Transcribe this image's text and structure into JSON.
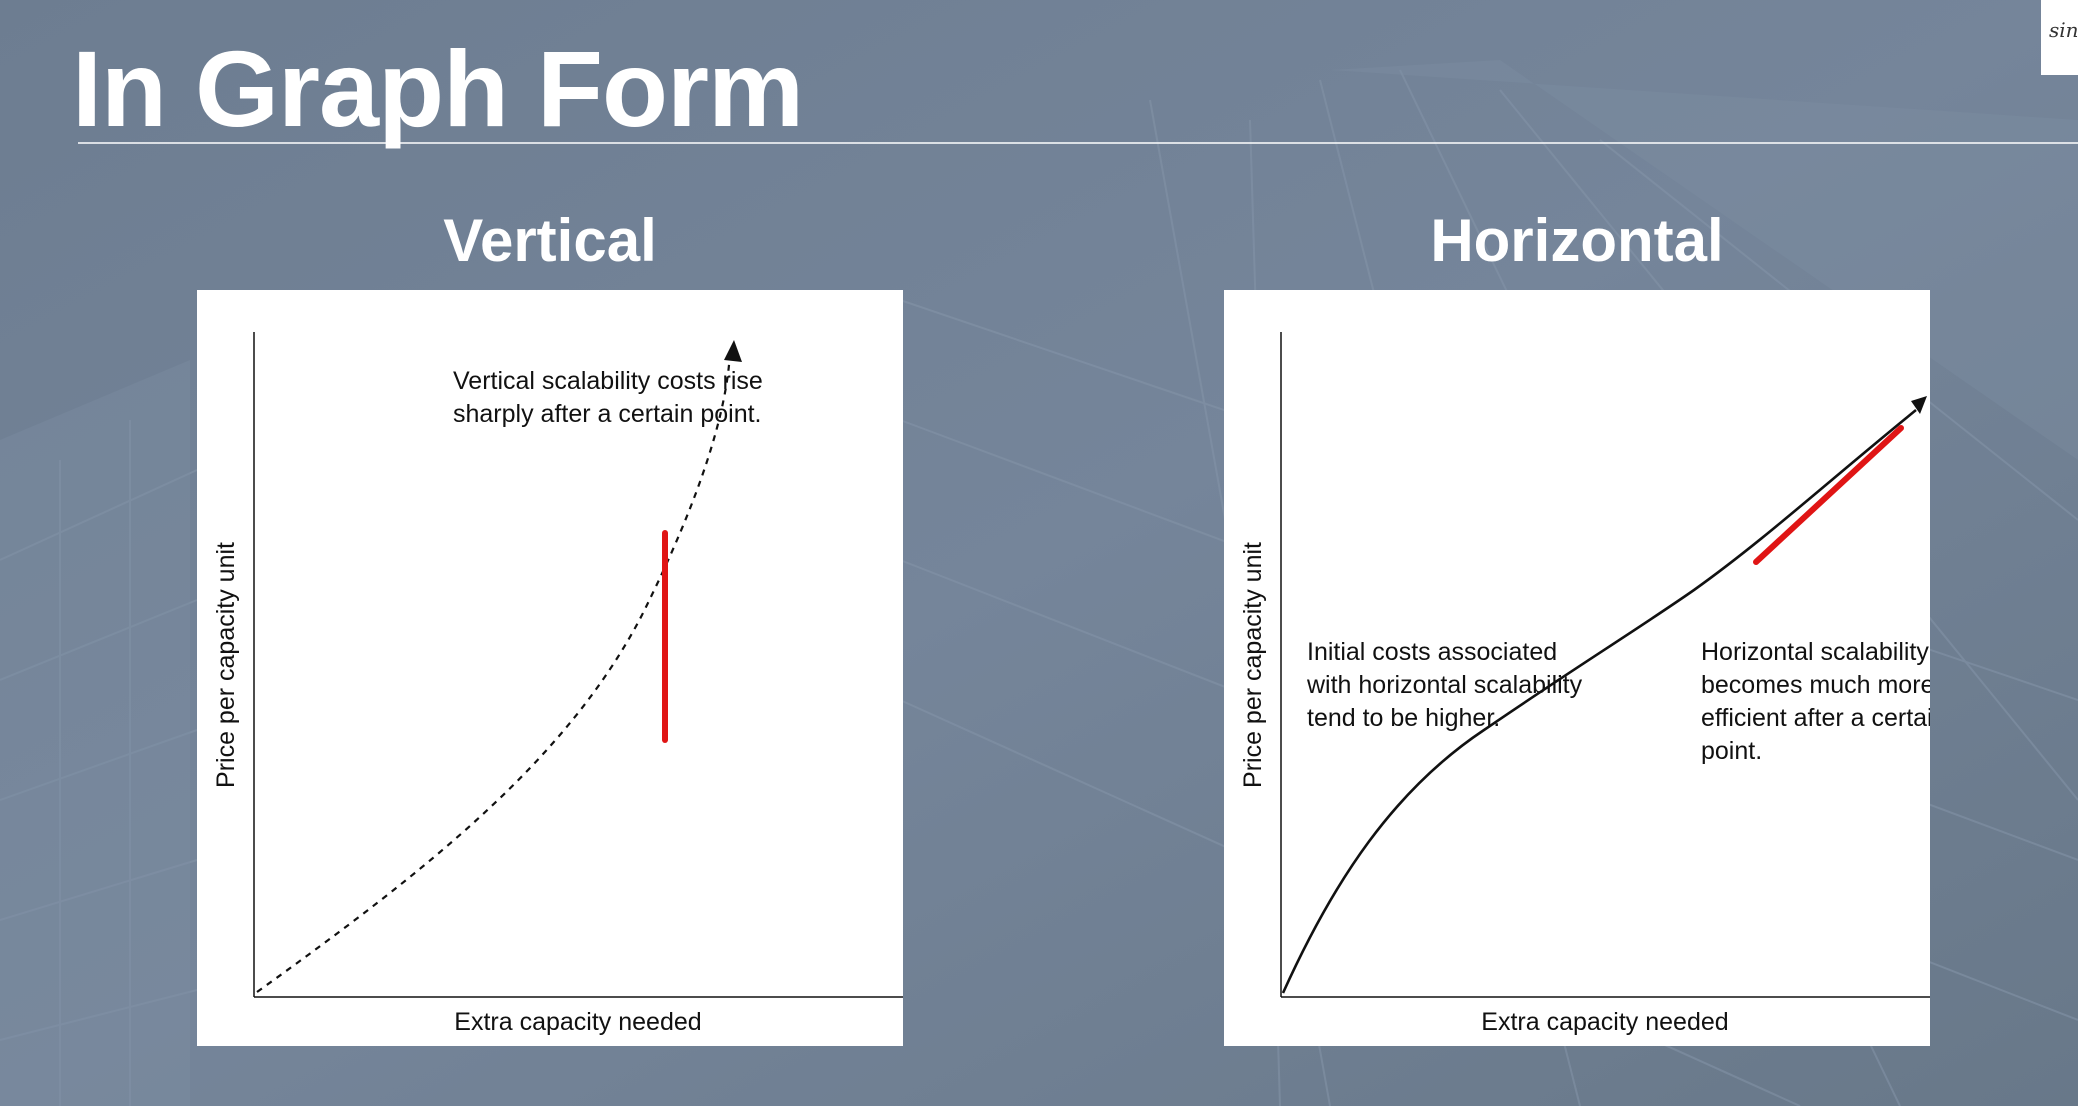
{
  "slide": {
    "title": "In Graph Form",
    "corner_badge_text": "sin"
  },
  "colors": {
    "background": "#6f7f93",
    "panel": "#ffffff",
    "curve": "#111111",
    "highlight": "#e01515"
  },
  "chart_data": [
    {
      "type": "line",
      "heading": "Vertical",
      "xlabel": "Extra capacity needed",
      "ylabel": "Price per capacity unit",
      "annotation_lines": [
        "Vertical scalability costs rise",
        "sharply after a certain point."
      ],
      "curve_style": "dashed-with-arrowhead",
      "grid": false,
      "legend": "none",
      "highlight": "vertical red line segment across the curve"
    },
    {
      "type": "line",
      "heading": "Horizontal",
      "xlabel": "Extra capacity needed",
      "ylabel": "Price per capacity unit",
      "annotation_left_lines": [
        "Initial costs associated",
        "with horizontal scalability",
        "tend to be higher."
      ],
      "annotation_right_lines": [
        "Horizontal scalability",
        "becomes much more",
        "efficient after a certai",
        "point."
      ],
      "curve_style": "solid-with-arrowhead",
      "grid": false,
      "legend": "none",
      "highlight": "diagonal red line segment parallel to the curve"
    }
  ]
}
